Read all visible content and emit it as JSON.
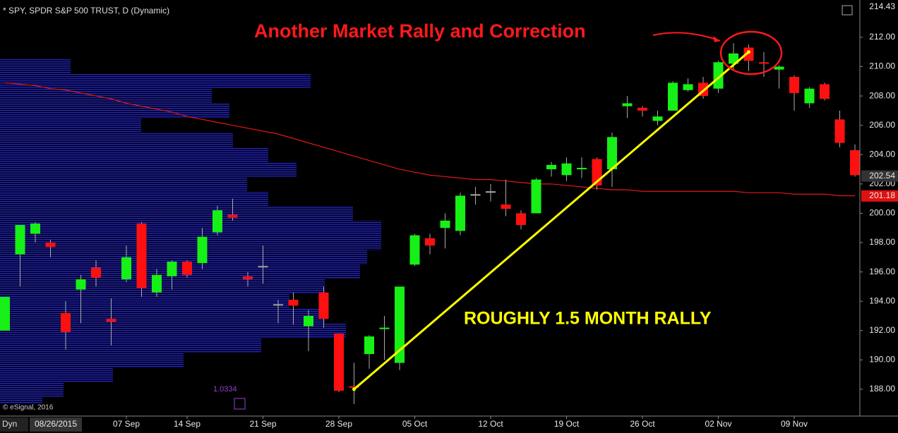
{
  "chart_data": {
    "type": "candlestick",
    "title": "* SPY, SPDR S&P 500 TRUST, D (Dynamic)",
    "annotations": {
      "headline": "Another Market Rally and Correction",
      "rally": "ROUGHLY 1.5 MONTH RALLY",
      "indicator": "1.0334",
      "copyright": "© eSignal, 2016",
      "mode": "Dyn"
    },
    "categories": [
      "08/26/2015",
      null,
      null,
      null,
      null,
      null,
      null,
      null,
      "07 Sep",
      null,
      null,
      null,
      "14 Sep",
      null,
      null,
      null,
      null,
      "21 Sep",
      null,
      null,
      null,
      null,
      "28 Sep",
      null,
      null,
      null,
      null,
      "05 Oct",
      null,
      null,
      null,
      null,
      "12 Oct",
      null,
      null,
      null,
      null,
      "19 Oct",
      null,
      null,
      null,
      null,
      "26 Oct",
      null,
      null,
      null,
      null,
      "02 Nov",
      null,
      null,
      null,
      null,
      "09 Nov",
      null,
      null,
      null,
      null
    ],
    "open": [
      192.0,
      197.2,
      198.6,
      198.0,
      193.2,
      194.8,
      196.3,
      192.8,
      195.5,
      199.3,
      194.6,
      195.7,
      196.7,
      196.6,
      198.7,
      199.9,
      195.7,
      196.4,
      193.8,
      194.1,
      192.3,
      194.6,
      191.8,
      188.2,
      190.4,
      192.1,
      189.8,
      196.5,
      198.3,
      199.0,
      198.8,
      201.3,
      201.5,
      200.6,
      200.0,
      200.0,
      203.0,
      202.6,
      203.0,
      203.7,
      203.0,
      207.3,
      207.2,
      206.3,
      207.0,
      208.4,
      208.9,
      208.5,
      210.2,
      211.3,
      210.3,
      209.8,
      209.3,
      207.5,
      208.8,
      206.4,
      204.3
    ],
    "close": [
      194.3,
      199.2,
      199.3,
      197.7,
      191.9,
      195.5,
      195.6,
      192.6,
      197.0,
      194.9,
      195.8,
      196.7,
      195.8,
      198.4,
      200.2,
      199.7,
      195.5,
      196.4,
      193.8,
      193.7,
      193.0,
      192.8,
      187.9,
      188.1,
      191.6,
      192.2,
      195.0,
      198.5,
      197.8,
      199.5,
      201.2,
      201.3,
      201.5,
      200.3,
      199.2,
      202.3,
      203.3,
      203.4,
      203.1,
      201.9,
      205.2,
      207.5,
      207.0,
      206.6,
      208.9,
      208.8,
      208.0,
      210.3,
      210.9,
      210.4,
      210.2,
      210.0,
      208.2,
      208.5,
      207.8,
      204.8,
      202.6
    ],
    "high": [
      194.3,
      199.2,
      199.4,
      198.2,
      194.0,
      195.8,
      196.8,
      194.2,
      197.8,
      199.4,
      196.2,
      196.8,
      196.8,
      199.0,
      200.5,
      201.0,
      196.0,
      197.8,
      194.1,
      194.6,
      193.4,
      195.0,
      191.8,
      189.8,
      191.7,
      193.0,
      195.0,
      198.6,
      198.6,
      200.0,
      201.4,
      201.8,
      202.0,
      202.3,
      200.2,
      202.4,
      203.5,
      203.8,
      203.8,
      203.8,
      205.5,
      208.0,
      207.3,
      207.0,
      209.0,
      209.2,
      209.3,
      210.4,
      211.6,
      211.5,
      211.0,
      210.1,
      209.4,
      208.6,
      208.9,
      207.0,
      204.7
    ],
    "low": [
      192.0,
      195.0,
      198.0,
      197.0,
      190.7,
      192.5,
      195.0,
      191.0,
      195.3,
      194.3,
      194.3,
      194.8,
      195.6,
      196.2,
      198.5,
      199.5,
      195.0,
      195.2,
      192.5,
      192.4,
      190.6,
      192.2,
      187.8,
      187.0,
      189.4,
      190.0,
      189.3,
      196.4,
      197.2,
      197.6,
      198.5,
      200.6,
      200.8,
      199.8,
      198.9,
      200.0,
      202.5,
      202.2,
      202.4,
      201.6,
      201.8,
      206.5,
      206.6,
      206.0,
      207.0,
      208.3,
      207.8,
      208.2,
      209.8,
      209.7,
      209.3,
      208.5,
      207.0,
      207.2,
      207.7,
      204.5,
      202.5
    ],
    "up_color": "#16f016",
    "down_color": "#ff1010",
    "moving_average": {
      "color": "#e01818",
      "values": [
        208.9,
        208.8,
        208.7,
        208.5,
        208.4,
        208.2,
        208.0,
        207.8,
        207.5,
        207.3,
        207.1,
        206.9,
        206.6,
        206.4,
        206.2,
        206.0,
        205.8,
        205.6,
        205.4,
        205.1,
        204.8,
        204.5,
        204.2,
        203.9,
        203.6,
        203.3,
        203.0,
        202.8,
        202.6,
        202.5,
        202.4,
        202.3,
        202.3,
        202.2,
        202.1,
        202.0,
        202.0,
        201.9,
        201.8,
        201.7,
        201.6,
        201.6,
        201.5,
        201.5,
        201.5,
        201.5,
        201.5,
        201.5,
        201.5,
        201.4,
        201.4,
        201.4,
        201.3,
        201.3,
        201.3,
        201.2,
        201.2
      ]
    },
    "volume_profile": {
      "color": "#2020c8",
      "prices": [
        210,
        209,
        208,
        207,
        206,
        205,
        204,
        203,
        202,
        201,
        200,
        199,
        198,
        197,
        196,
        195,
        194,
        193,
        192,
        191,
        190,
        189,
        188,
        187.5
      ],
      "values": [
        100,
        440,
        300,
        325,
        200,
        330,
        380,
        420,
        350,
        380,
        500,
        540,
        540,
        520,
        510,
        460,
        410,
        460,
        490,
        370,
        260,
        160,
        90,
        60
      ]
    },
    "trendline": {
      "color": "#ffff00",
      "start": 188.0,
      "end": 211.0
    },
    "price_labels": [
      {
        "value": 214.43,
        "label": "214.43"
      },
      {
        "value": 202.54,
        "label": "202.54"
      },
      {
        "value": 201.18,
        "label": "201.18"
      }
    ],
    "ylim": [
      186.17,
      214.4
    ],
    "yticks": [
      {
        "value": 188,
        "label": "188.00"
      },
      {
        "value": 190,
        "label": "190.00"
      },
      {
        "value": 192,
        "label": "192.00"
      },
      {
        "value": 194,
        "label": "194.00"
      },
      {
        "value": 196,
        "label": "196.00"
      },
      {
        "value": 198,
        "label": "198.00"
      },
      {
        "value": 200,
        "label": "200.00"
      },
      {
        "value": 202,
        "label": "202.00"
      },
      {
        "value": 204,
        "label": "204.00"
      },
      {
        "value": 206,
        "label": "206.00"
      },
      {
        "value": 208,
        "label": "208.00"
      },
      {
        "value": 210,
        "label": "210.00"
      },
      {
        "value": 212,
        "label": "212.00"
      }
    ]
  }
}
